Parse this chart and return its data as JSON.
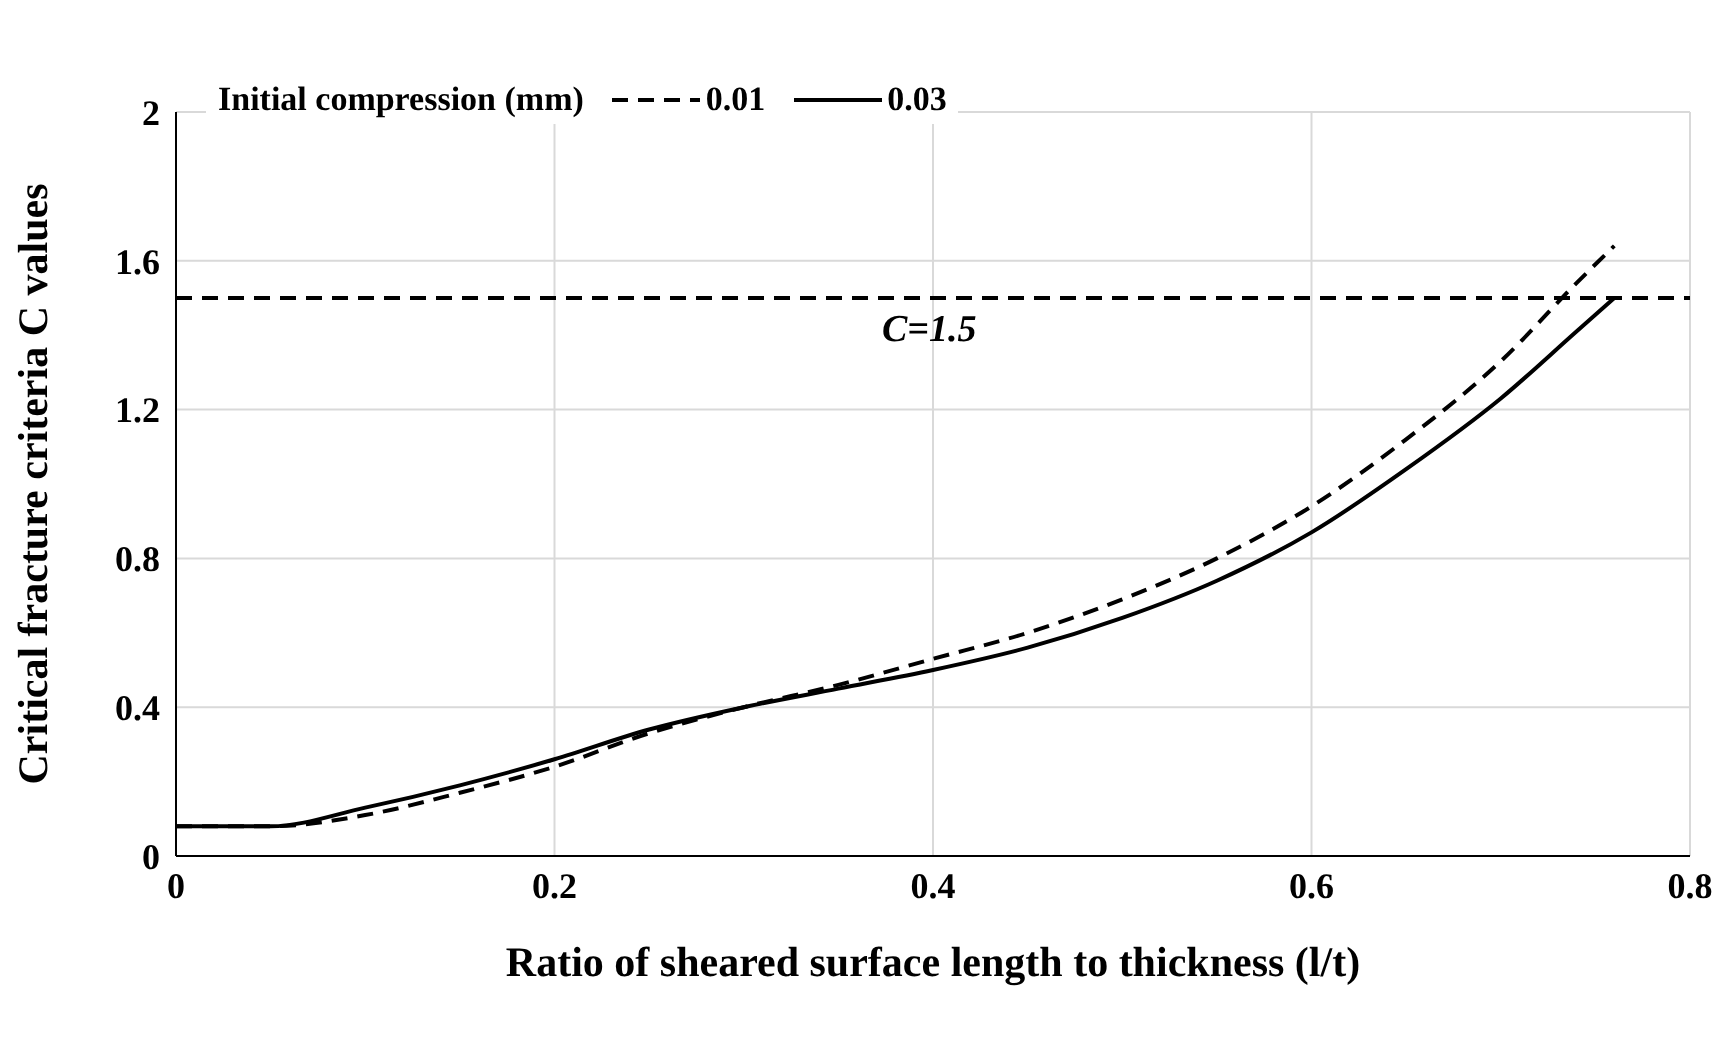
{
  "chart_data": {
    "type": "line",
    "xlabel": "Ratio of sheared surface length to thickness (l/t)",
    "ylabel": "Critical fracture criteria C values",
    "legend_title": "Initial compression (mm)",
    "legend": "top left",
    "grid": true,
    "marker": "none",
    "x": [
      0,
      0.05,
      0.1,
      0.15,
      0.2,
      0.25,
      0.3,
      0.35,
      0.4,
      0.45,
      0.5,
      0.55,
      0.6,
      0.65,
      0.7,
      0.74,
      0.76
    ],
    "series": [
      {
        "name": "0.01",
        "color": "#000000",
        "line_style": "dashed",
        "values": [
          0.08,
          0.08,
          0.11,
          0.17,
          0.24,
          0.33,
          0.4,
          0.46,
          0.53,
          0.6,
          0.69,
          0.8,
          0.94,
          1.12,
          1.33,
          1.54,
          1.64
        ]
      },
      {
        "name": "0.03",
        "color": "#000000",
        "line_style": "solid",
        "values": [
          0.08,
          0.08,
          0.13,
          0.19,
          0.26,
          0.34,
          0.4,
          0.45,
          0.5,
          0.56,
          0.64,
          0.74,
          0.87,
          1.04,
          1.23,
          1.41,
          1.5
        ]
      }
    ],
    "xlim": [
      0,
      0.8
    ],
    "xticks": [
      0,
      0.2,
      0.4,
      0.6,
      0.8
    ],
    "ylim": [
      0,
      2
    ],
    "yticks": [
      0,
      0.4,
      0.8,
      1.2,
      1.6,
      2
    ],
    "ref_lines": [
      {
        "axis": "y",
        "value": 1.5,
        "label": "C=1.5",
        "line_style": "dashed",
        "color": "#000000"
      }
    ]
  }
}
